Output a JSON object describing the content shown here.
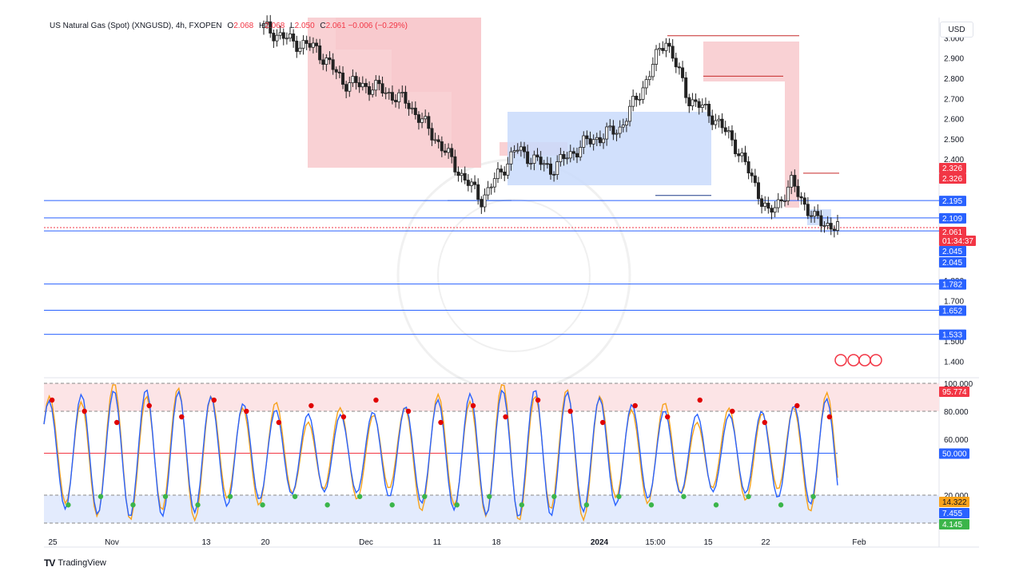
{
  "legend": {
    "symbol": "US Natural Gas (Spot) (XNGUSD), 4h, FXOPEN",
    "o_label": "O",
    "o": "2.068",
    "h_label": "H",
    "h": "2.068",
    "l_label": "L",
    "l": "2.050",
    "c_label": "C",
    "c": "2.061",
    "change": "−0.006 (−0.29%)"
  },
  "currency": "USD",
  "brand": {
    "logo": "TV",
    "name": "TradingView"
  },
  "colors": {
    "up": "#26a69a",
    "down": "#ef5350",
    "candle": "#222222",
    "level": "#2962ff",
    "supply": "#f8c9cc",
    "demand": "#c9dafc",
    "k_line": "#f7a21b",
    "d_line": "#2962ff",
    "overbought_zone": "#fce4e6",
    "oversold_zone": "#e3ebfd",
    "mid_line": "#f23645"
  },
  "chart_data": [
    {
      "type": "candlestick",
      "ylim": [
        1.35,
        3.1
      ],
      "y_ticks": [
        "3.000",
        "2.900",
        "2.800",
        "2.700",
        "2.600",
        "2.500",
        "2.400",
        "2.300",
        "1.800",
        "1.700",
        "1.500",
        "1.400"
      ],
      "x_ticks": [
        "25",
        "Nov",
        "13",
        "20",
        "Dec",
        "11",
        "18",
        "2024",
        "15:00",
        "15",
        "22",
        "Feb"
      ],
      "price_levels": [
        2.195,
        2.109,
        2.045,
        1.782,
        1.652,
        1.533
      ],
      "price_badges": [
        {
          "label": "2.326",
          "kind": "sell"
        },
        {
          "label": "2.326",
          "kind": "sell"
        },
        {
          "label": "2.195",
          "kind": "level"
        },
        {
          "label": "2.109",
          "kind": "level"
        },
        {
          "label": "2.061",
          "kind": "last"
        },
        {
          "label": "01:34:37",
          "kind": "countdown"
        },
        {
          "label": "2.045",
          "kind": "level"
        },
        {
          "label": "2.045",
          "kind": "level"
        },
        {
          "label": "1.782",
          "kind": "level"
        },
        {
          "label": "1.652",
          "kind": "level"
        },
        {
          "label": "1.533",
          "kind": "level"
        }
      ],
      "last_price": 2.061,
      "countdown": "01:34:37",
      "series_close": [
        {
          "t": 0.0,
          "v": 3.05
        },
        {
          "t": 0.05,
          "v": 2.98
        },
        {
          "t": 0.09,
          "v": 2.95
        },
        {
          "t": 0.14,
          "v": 2.78
        },
        {
          "t": 0.2,
          "v": 2.75
        },
        {
          "t": 0.25,
          "v": 2.68
        },
        {
          "t": 0.3,
          "v": 2.5
        },
        {
          "t": 0.35,
          "v": 2.3
        },
        {
          "t": 0.38,
          "v": 2.2
        },
        {
          "t": 0.44,
          "v": 2.45
        },
        {
          "t": 0.5,
          "v": 2.35
        },
        {
          "t": 0.56,
          "v": 2.48
        },
        {
          "t": 0.62,
          "v": 2.55
        },
        {
          "t": 0.66,
          "v": 2.75
        },
        {
          "t": 0.7,
          "v": 3.0
        },
        {
          "t": 0.74,
          "v": 2.7
        },
        {
          "t": 0.78,
          "v": 2.62
        },
        {
          "t": 0.82,
          "v": 2.48
        },
        {
          "t": 0.86,
          "v": 2.25
        },
        {
          "t": 0.88,
          "v": 2.12
        },
        {
          "t": 0.92,
          "v": 2.28
        },
        {
          "t": 0.96,
          "v": 2.1
        },
        {
          "t": 1.0,
          "v": 2.061
        }
      ]
    },
    {
      "type": "line",
      "name": "stochastic",
      "ylim": [
        0,
        100
      ],
      "y_ticks": [
        "100.000",
        "80.000",
        "60.000",
        "20.000"
      ],
      "levels": [
        100,
        80,
        50,
        20,
        0
      ],
      "badges": [
        {
          "label": "95.774",
          "kind": "sell"
        },
        {
          "label": "50.000",
          "kind": "level"
        },
        {
          "label": "14.322",
          "kind": "k"
        },
        {
          "label": "7.455",
          "kind": "d"
        },
        {
          "label": "4.145",
          "kind": "low"
        }
      ],
      "k_last": 14.322,
      "d_last": 7.455
    }
  ]
}
